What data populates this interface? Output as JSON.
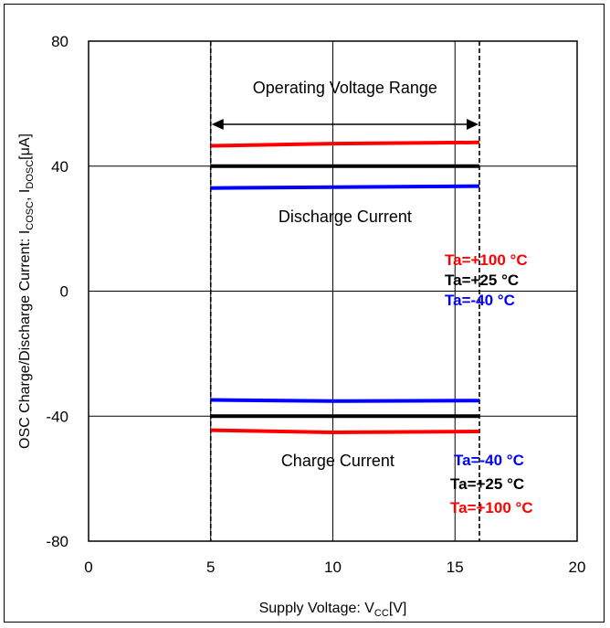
{
  "chart_data": {
    "type": "line",
    "xlabel": {
      "main": "Supply Voltage: V",
      "sub": "CC",
      "tail": "[V]"
    },
    "ylabel": {
      "prefix": "OSC Charge/Discharge Current: I",
      "sub1": "COSC",
      "mid": ", I",
      "sub2": "DOSC",
      "tail": "[μA]"
    },
    "xlim": [
      0,
      20
    ],
    "ylim": [
      -80,
      80
    ],
    "xticks": [
      "0",
      "5",
      "10",
      "15",
      "20"
    ],
    "yticks": [
      "80",
      "40",
      "0",
      "-40",
      "-80"
    ],
    "xtick_values": [
      0,
      5,
      10,
      15,
      20
    ],
    "ytick_values": [
      80,
      40,
      0,
      -40,
      -80
    ],
    "grid": true,
    "operating_range": {
      "label": "Operating Voltage Range",
      "x_min": 5,
      "x_max": 16
    },
    "annotations": {
      "discharge": "Discharge Current",
      "charge": "Charge Current"
    },
    "series": [
      {
        "group": "discharge",
        "name": "Ta=+100 °C",
        "color": "#ff0000",
        "x": [
          5,
          10,
          16
        ],
        "values": [
          46.5,
          47.2,
          47.6
        ]
      },
      {
        "group": "discharge",
        "name": "Ta=+25 °C",
        "color": "#000000",
        "x": [
          5,
          10,
          16
        ],
        "values": [
          40.0,
          40.0,
          40.0
        ]
      },
      {
        "group": "discharge",
        "name": "Ta=-40 °C",
        "color": "#0000ff",
        "x": [
          5,
          10,
          16
        ],
        "values": [
          33.0,
          33.3,
          33.6
        ]
      },
      {
        "group": "charge",
        "name": "Ta=-40 °C",
        "color": "#0000ff",
        "x": [
          5,
          10,
          16
        ],
        "values": [
          -34.8,
          -35.2,
          -35.0
        ]
      },
      {
        "group": "charge",
        "name": "Ta=+25 °C",
        "color": "#000000",
        "x": [
          5,
          10,
          16
        ],
        "values": [
          -40.0,
          -40.0,
          -40.0
        ]
      },
      {
        "group": "charge",
        "name": "Ta=+100 °C",
        "color": "#ff0000",
        "x": [
          5,
          10,
          16
        ],
        "values": [
          -44.5,
          -45.2,
          -44.9
        ]
      }
    ],
    "legend_upper": [
      {
        "label": "Ta=+100 °C",
        "color": "#ff0000"
      },
      {
        "label": "Ta=+25 °C",
        "color": "#000000"
      },
      {
        "label": "Ta=-40 °C",
        "color": "#0000ff"
      }
    ],
    "legend_lower": [
      {
        "label": "Ta=-40 °C",
        "color": "#0000ff"
      },
      {
        "label": "Ta=+25 °C",
        "color": "#000000"
      },
      {
        "label": "Ta=+100 °C",
        "color": "#ff0000"
      }
    ]
  }
}
